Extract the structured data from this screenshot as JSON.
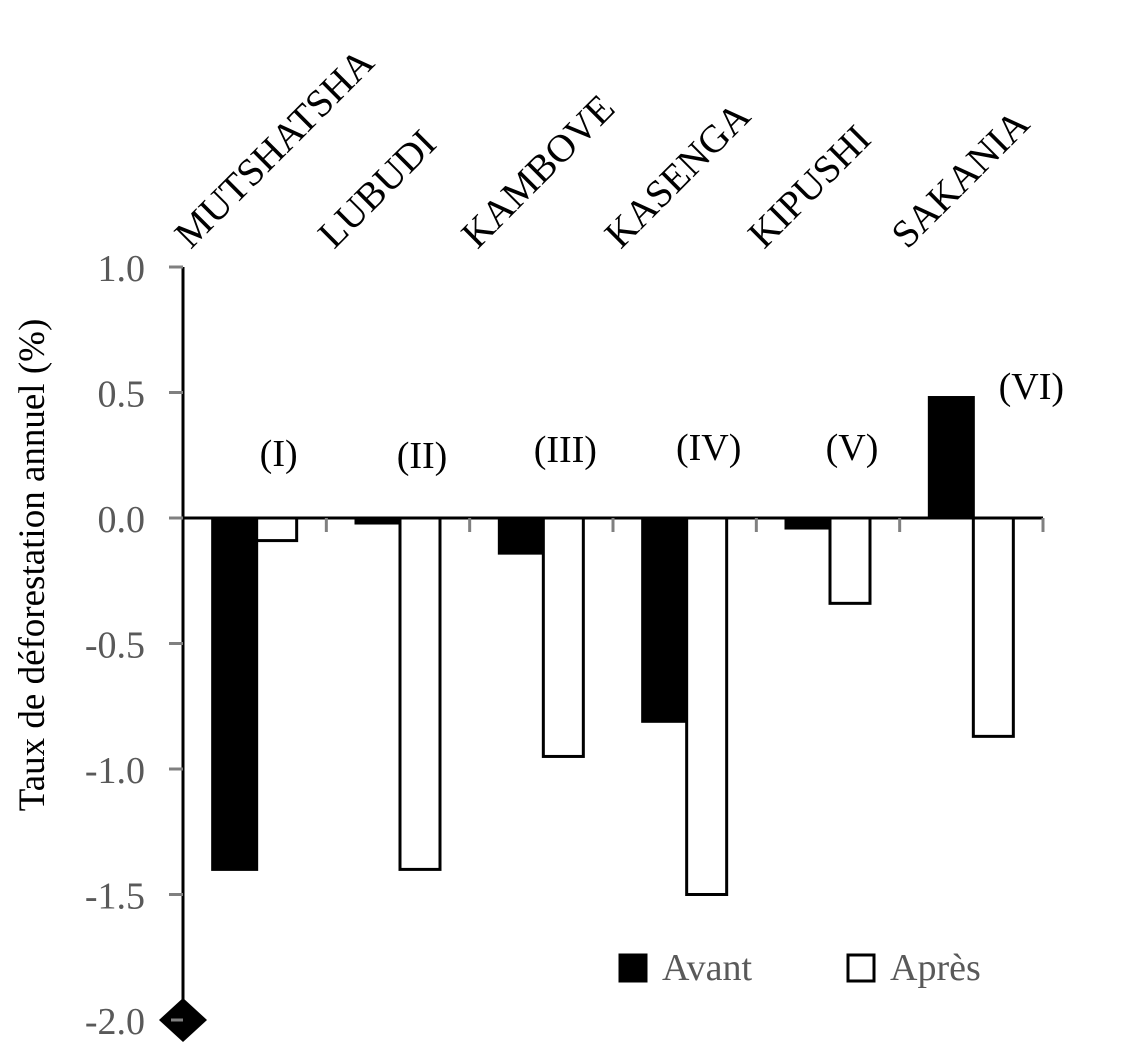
{
  "chart_data": {
    "type": "bar",
    "title": "",
    "xlabel": "",
    "ylabel": "Taux de déforestation annuel (%)",
    "ylim": [
      -2.0,
      1.0
    ],
    "yticks": [
      "1.0",
      "0.5",
      "0.0",
      "-0.5",
      "-1.0",
      "-1.5",
      "-2.0"
    ],
    "ytick_values": [
      1.0,
      0.5,
      0.0,
      -0.5,
      -1.0,
      -1.5,
      -2.0
    ],
    "categories": [
      "MUTSHATSHA",
      "LUBUDI",
      "KAMBOVE",
      "KASENGA",
      "KIPUSHI",
      "SAKANIA"
    ],
    "group_labels": [
      "(I)",
      "(II)",
      "(III)",
      "(IV)",
      "(V)",
      "(VI)"
    ],
    "series": [
      {
        "name": "Avant",
        "color": "#000000",
        "values": [
          -1.4,
          -0.02,
          -0.14,
          -0.81,
          -0.04,
          0.48
        ]
      },
      {
        "name": "Après",
        "color": "#ffffff",
        "values": [
          -0.09,
          -1.4,
          -0.95,
          -1.5,
          -0.34,
          -0.87
        ]
      }
    ],
    "grid": false,
    "legend_position": "bottom-right",
    "axis_color": "#000000",
    "tick_color": "#808080",
    "text_color": "#595959"
  }
}
